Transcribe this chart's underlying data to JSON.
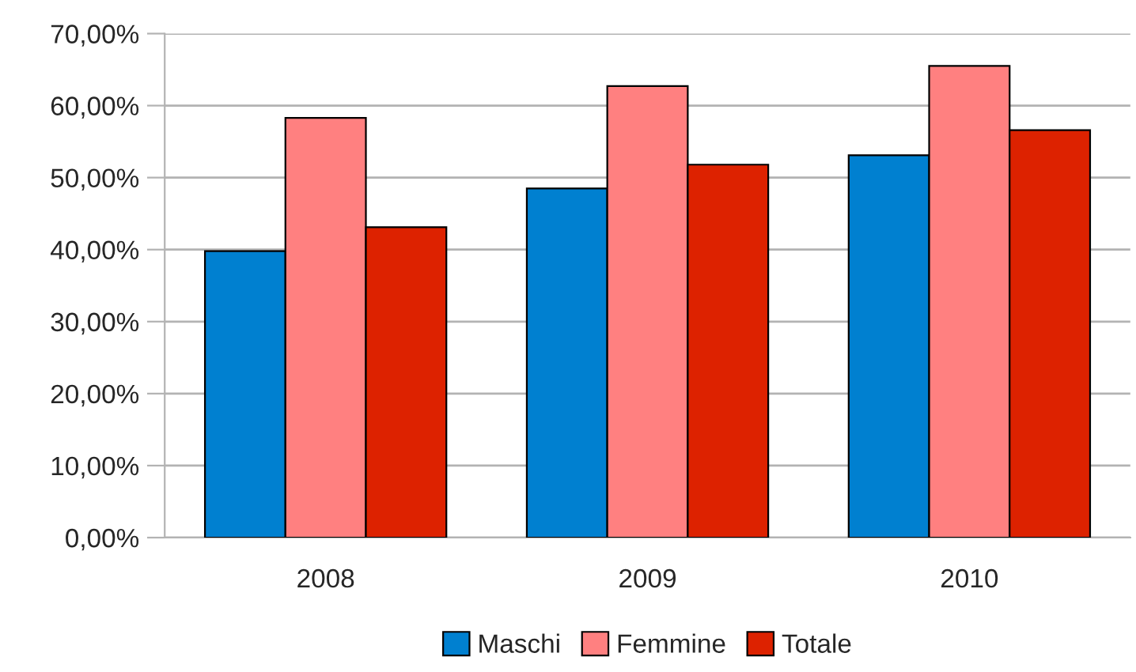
{
  "chart_data": {
    "type": "bar",
    "categories": [
      "2008",
      "2009",
      "2010"
    ],
    "series": [
      {
        "name": "Maschi",
        "color": "#0080d0",
        "values": [
          39.8,
          48.5,
          53.1
        ]
      },
      {
        "name": "Femmine",
        "color": "#ff8080",
        "values": [
          58.3,
          62.7,
          65.5
        ]
      },
      {
        "name": "Totale",
        "color": "#dd2200",
        "values": [
          43.1,
          51.8,
          56.6
        ]
      }
    ],
    "ylim": [
      0,
      70
    ],
    "yticks": [
      {
        "value": 0,
        "label": "0,00%"
      },
      {
        "value": 10,
        "label": "10,00%"
      },
      {
        "value": 20,
        "label": "20,00%"
      },
      {
        "value": 30,
        "label": "30,00%"
      },
      {
        "value": 40,
        "label": "40,00%"
      },
      {
        "value": 50,
        "label": "50,00%"
      },
      {
        "value": 60,
        "label": "60,00%"
      },
      {
        "value": 70,
        "label": "70,00%"
      }
    ],
    "grid": "y",
    "legend": "bottom"
  }
}
